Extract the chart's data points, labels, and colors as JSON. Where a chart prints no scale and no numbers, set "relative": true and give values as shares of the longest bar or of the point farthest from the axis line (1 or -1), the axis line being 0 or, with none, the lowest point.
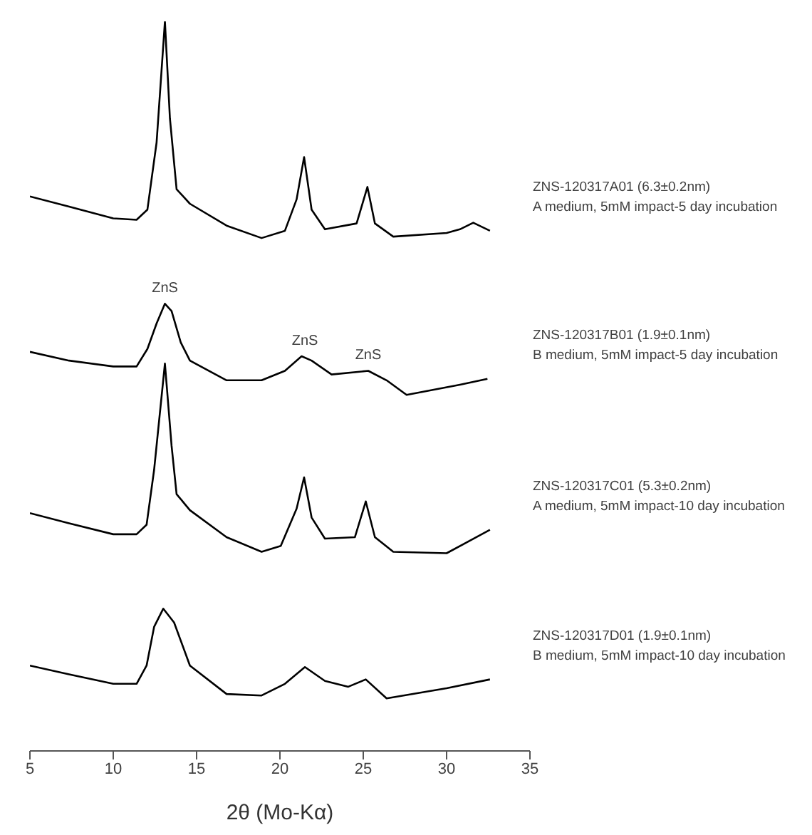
{
  "chart_data": {
    "type": "line",
    "relative": true,
    "xlabel": "2θ (Mo-Kα)",
    "xlim": [
      5,
      35
    ],
    "xticks": [
      5,
      10,
      15,
      20,
      25,
      30,
      35
    ],
    "series": [
      {
        "name": "ZNS-120317A01 (6.3±0.2nm)",
        "color": "#000000",
        "x": [
          5,
          7.35,
          10,
          11.4,
          12.05,
          12.6,
          13.1,
          13.4,
          13.8,
          14.6,
          16.8,
          18.9,
          20.3,
          21,
          21.45,
          21.9,
          22.7,
          24.6,
          25.25,
          25.7,
          26.8,
          30,
          30.8,
          31.6,
          32.6
        ],
        "values": [
          0.76,
          0.746,
          0.73,
          0.728,
          0.742,
          0.834,
          1,
          0.867,
          0.77,
          0.75,
          0.72,
          0.703,
          0.713,
          0.756,
          0.814,
          0.742,
          0.715,
          0.723,
          0.773,
          0.723,
          0.705,
          0.71,
          0.715,
          0.724,
          0.713
        ]
      },
      {
        "name": "ZNS-120317B01 (1.9±0.1nm)",
        "color": "#000000",
        "x": [
          5,
          7.35,
          10,
          11.4,
          12.05,
          12.6,
          13.1,
          13.5,
          14.05,
          14.6,
          16.8,
          18.9,
          20.3,
          21.3,
          21.9,
          23.1,
          25.3,
          26.4,
          27.6,
          30.8,
          32.45
        ],
        "values": [
          0.547,
          0.535,
          0.527,
          0.527,
          0.551,
          0.586,
          0.613,
          0.603,
          0.56,
          0.535,
          0.508,
          0.508,
          0.521,
          0.541,
          0.535,
          0.516,
          0.521,
          0.508,
          0.488,
          0.502,
          0.51
        ]
      },
      {
        "name": "ZNS-120317C01 (5.3±0.2nm)",
        "color": "#000000",
        "x": [
          5,
          7.35,
          10,
          11.4,
          12,
          12.45,
          13.1,
          13.5,
          13.8,
          14.6,
          16.8,
          18.9,
          20.05,
          21,
          21.45,
          21.9,
          22.7,
          24.5,
          25.15,
          25.7,
          26.8,
          30,
          32.6
        ],
        "values": [
          0.326,
          0.312,
          0.297,
          0.297,
          0.31,
          0.385,
          0.531,
          0.418,
          0.352,
          0.33,
          0.293,
          0.273,
          0.281,
          0.332,
          0.375,
          0.32,
          0.291,
          0.293,
          0.342,
          0.293,
          0.273,
          0.271,
          0.303
        ]
      },
      {
        "name": "ZNS-120317D01 (1.9±0.1nm)",
        "color": "#000000",
        "x": [
          5,
          7.35,
          10,
          11.4,
          12,
          12.45,
          13,
          13.65,
          14.6,
          16.8,
          18.9,
          20.3,
          21.5,
          22.7,
          24.1,
          25.15,
          26.4,
          30,
          32.6
        ],
        "values": [
          0.117,
          0.105,
          0.092,
          0.092,
          0.117,
          0.17,
          0.195,
          0.176,
          0.117,
          0.078,
          0.076,
          0.092,
          0.115,
          0.096,
          0.088,
          0.098,
          0.072,
          0.086,
          0.098
        ]
      }
    ],
    "annotations": [
      "A medium, 5mM impact-5 day incubation",
      "B medium, 5mM impact-5 day incubation",
      "A medium, 5mM impact-10 day incubation",
      "B medium, 5mM impact-10 day incubation",
      {
        "text": "ZnS",
        "x": 13.1,
        "y": 0.613
      },
      {
        "text": "ZnS",
        "x": 21.5,
        "y": 0.541
      },
      {
        "text": "ZnS",
        "x": 25.3,
        "y": 0.521
      }
    ]
  }
}
